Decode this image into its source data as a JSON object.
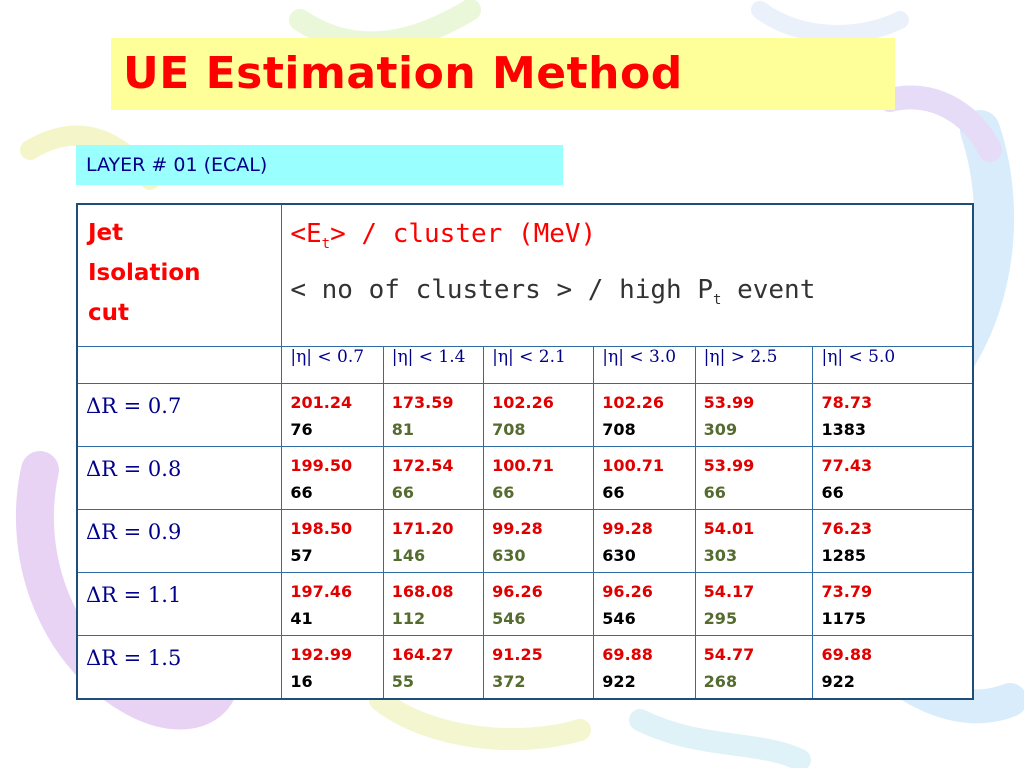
{
  "slide": {
    "title": "UE Estimation Method",
    "layer": "LAYER # 01 (ECAL)"
  },
  "table": {
    "header_left": [
      "Jet",
      "Isolation",
      "cut"
    ],
    "header_line1": {
      "pre": "<E",
      "sub": "t",
      "post": "> / cluster (MeV)"
    },
    "header_line2": {
      "pre": "< no of clusters > / high P",
      "sub": "t",
      "post": " event"
    },
    "eta_cuts": [
      "|η| < 0.7",
      "|η| < 1.4",
      "|η| < 2.1",
      "|η| < 3.0",
      "|η| > 2.5",
      "|η| < 5.0"
    ],
    "rows": [
      {
        "label": "ΔR = 0.7",
        "cells": [
          {
            "e": "201.24",
            "n": "76"
          },
          {
            "e": "173.59",
            "n": "81"
          },
          {
            "e": "102.26",
            "n": "708"
          },
          {
            "e": "102.26",
            "n": "708"
          },
          {
            "e": "53.99",
            "n": "309"
          },
          {
            "e": "78.73",
            "n": "1383"
          }
        ]
      },
      {
        "label": "ΔR = 0.8",
        "cells": [
          {
            "e": "199.50",
            "n": "66"
          },
          {
            "e": "172.54",
            "n": "66"
          },
          {
            "e": "100.71",
            "n": "66"
          },
          {
            "e": "100.71",
            "n": "66"
          },
          {
            "e": "53.99",
            "n": "66"
          },
          {
            "e": "77.43",
            "n": "66"
          }
        ]
      },
      {
        "label": "ΔR = 0.9",
        "cells": [
          {
            "e": "198.50",
            "n": "57"
          },
          {
            "e": "171.20",
            "n": "146"
          },
          {
            "e": "99.28",
            "n": "630"
          },
          {
            "e": "99.28",
            "n": "630"
          },
          {
            "e": "54.01",
            "n": "303"
          },
          {
            "e": "76.23",
            "n": "1285"
          }
        ]
      },
      {
        "label": "ΔR = 1.1",
        "cells": [
          {
            "e": "197.46",
            "n": "41"
          },
          {
            "e": "168.08",
            "n": "112"
          },
          {
            "e": "96.26",
            "n": "546"
          },
          {
            "e": "96.26",
            "n": "546"
          },
          {
            "e": "54.17",
            "n": "295"
          },
          {
            "e": "73.79",
            "n": "1175"
          }
        ]
      },
      {
        "label": "ΔR = 1.5",
        "cells": [
          {
            "e": "192.99",
            "n": "16"
          },
          {
            "e": "164.27",
            "n": "55"
          },
          {
            "e": "91.25",
            "n": "372"
          },
          {
            "e": "69.88",
            "n": "922"
          },
          {
            "e": "54.77",
            "n": "268"
          },
          {
            "e": "69.88",
            "n": "922"
          }
        ]
      }
    ]
  },
  "colors": {
    "title": "#ff0000",
    "title_bg": "#ffff99",
    "layer_bg": "#99ffff",
    "value": "#e00000",
    "border": "#2e6da4",
    "count_colors": [
      "#000000",
      "#556b2f",
      "#556b2f",
      "#000000",
      "#556b2f",
      "#000000"
    ]
  }
}
